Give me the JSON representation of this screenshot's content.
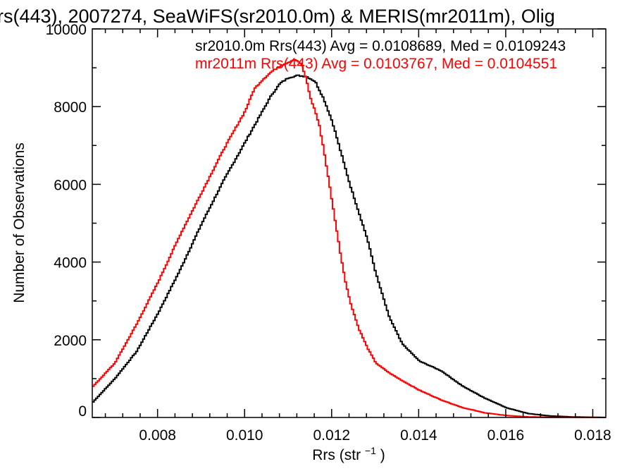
{
  "chart_data": {
    "type": "line",
    "title": "rs(443), 2007274, SeaWiFS(sr2010.0m) & MERIS(mr2011m), Olig",
    "xlabel": "Rrs (str",
    "xlabel_exp": "−1",
    "xlabel_close": ")",
    "ylabel": "Number of Observations",
    "xlim": [
      0.0065,
      0.0183
    ],
    "ylim": [
      0,
      10000
    ],
    "x_ticks": [
      0.008,
      0.01,
      0.012,
      0.014,
      0.016,
      0.018
    ],
    "x_tick_labels": [
      "0.008",
      "0.010",
      "0.012",
      "0.014",
      "0.016",
      "0.018"
    ],
    "y_ticks": [
      0,
      2000,
      4000,
      6000,
      8000,
      10000
    ],
    "y_tick_labels": [
      "0",
      "2000",
      "4000",
      "6000",
      "8000",
      "10000"
    ],
    "grid": false,
    "annotations": [
      "sr2010.0m Rrs(443) Avg = 0.0108689, Med = 0.0109243",
      "mr2011m Rrs(443) Avg = 0.0103767, Med = 0.0104551"
    ],
    "series": [
      {
        "color": "#000000",
        "x": [
          0.0065,
          0.007,
          0.0075,
          0.008,
          0.0085,
          0.009,
          0.0095,
          0.01,
          0.0103,
          0.0106,
          0.0108,
          0.011,
          0.0112,
          0.0114,
          0.0116,
          0.0118,
          0.012,
          0.0122,
          0.0124,
          0.0126,
          0.0128,
          0.013,
          0.0133,
          0.0136,
          0.014,
          0.0145,
          0.015,
          0.0155,
          0.016,
          0.0165,
          0.017,
          0.0175,
          0.0183
        ],
        "y": [
          400,
          1000,
          1700,
          2700,
          3800,
          5000,
          6100,
          7100,
          7700,
          8300,
          8600,
          8750,
          8800,
          8780,
          8650,
          8200,
          7600,
          6800,
          6000,
          5300,
          4600,
          3700,
          2600,
          1900,
          1450,
          1200,
          800,
          500,
          250,
          100,
          40,
          15,
          0
        ]
      },
      {
        "color": "#ff0000",
        "x": [
          0.0065,
          0.007,
          0.0075,
          0.008,
          0.0085,
          0.009,
          0.0095,
          0.01,
          0.0102,
          0.0104,
          0.0106,
          0.0108,
          0.011,
          0.0111,
          0.0112,
          0.0113,
          0.0114,
          0.0115,
          0.0116,
          0.0117,
          0.0118,
          0.0119,
          0.012,
          0.0121,
          0.0122,
          0.0123,
          0.0124,
          0.0126,
          0.0128,
          0.013,
          0.0133,
          0.0136,
          0.014,
          0.0145,
          0.015,
          0.0155,
          0.016,
          0.0165,
          0.017,
          0.0183
        ],
        "y": [
          800,
          1400,
          2400,
          3500,
          4700,
          5800,
          6900,
          7900,
          8450,
          8700,
          8900,
          9050,
          9150,
          9200,
          9180,
          9050,
          8700,
          8200,
          7900,
          7500,
          6900,
          6200,
          5500,
          4800,
          4100,
          3500,
          3000,
          2300,
          1800,
          1400,
          1150,
          950,
          700,
          450,
          250,
          120,
          50,
          15,
          5,
          0
        ]
      }
    ]
  }
}
